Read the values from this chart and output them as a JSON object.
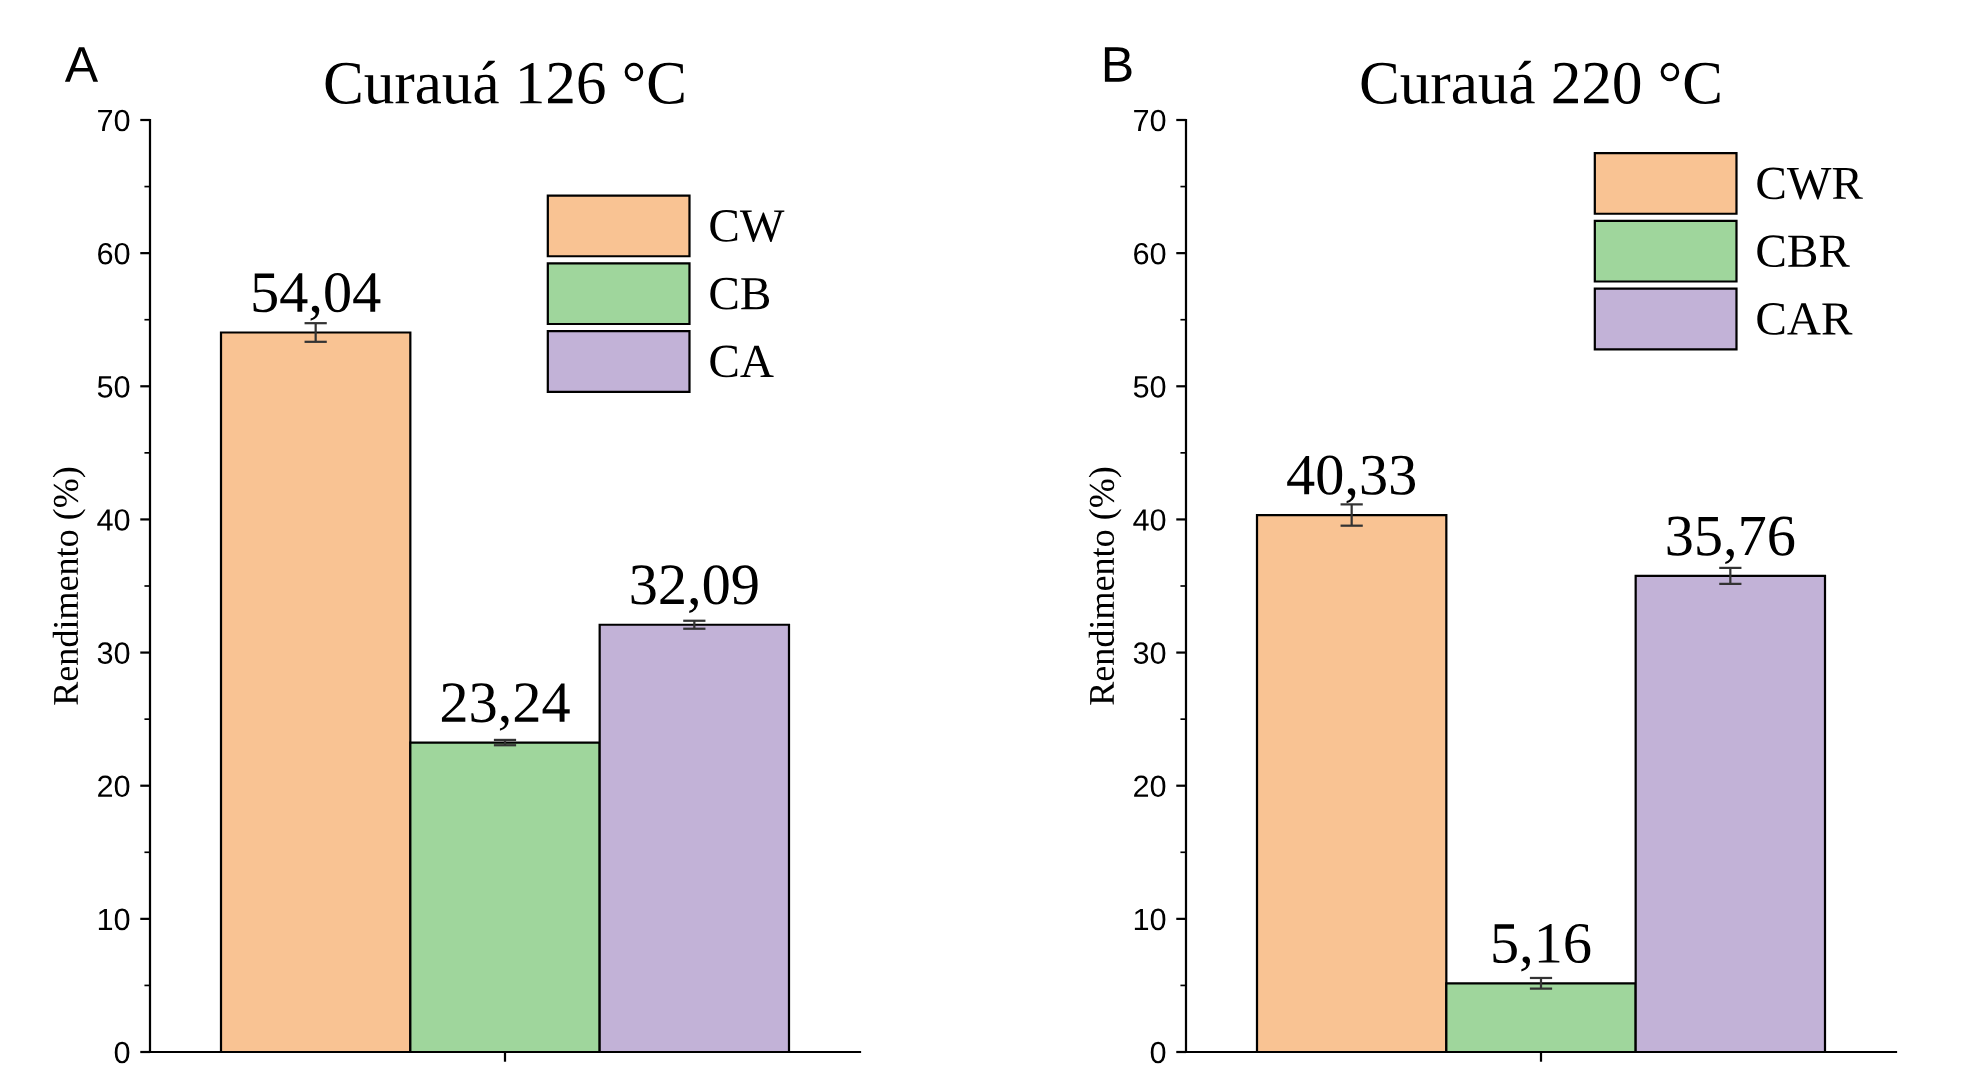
{
  "chart_data": [
    {
      "type": "bar",
      "title": "Curauá 126 °C",
      "ylabel": "Rendimento (%)",
      "annotations": [
        "A"
      ],
      "categories": [
        null
      ],
      "ylim": [
        0,
        70
      ],
      "yticks": [
        0,
        10,
        20,
        30,
        40,
        50,
        60,
        70
      ],
      "legend": "top right",
      "grid": false,
      "series": [
        {
          "name": "CW",
          "color": "#f9c393",
          "values": [
            54.04
          ],
          "errors": [
            0.7
          ],
          "value_labels": [
            "54,04"
          ]
        },
        {
          "name": "CB",
          "color": "#9fd69c",
          "values": [
            23.24
          ],
          "errors": [
            0.2
          ],
          "value_labels": [
            "23,24"
          ]
        },
        {
          "name": "CA",
          "color": "#c2b2d7",
          "values": [
            32.09
          ],
          "errors": [
            0.3
          ],
          "value_labels": [
            "32,09"
          ]
        }
      ]
    },
    {
      "type": "bar",
      "title": "Curauá 220 °C",
      "ylabel": "Rendimento (%)",
      "annotations": [
        "B"
      ],
      "categories": [
        null
      ],
      "ylim": [
        0,
        70
      ],
      "yticks": [
        0,
        10,
        20,
        30,
        40,
        50,
        60,
        70
      ],
      "legend": "top right",
      "grid": false,
      "series": [
        {
          "name": "CWR",
          "color": "#f9c393",
          "values": [
            40.33
          ],
          "errors": [
            0.8
          ],
          "value_labels": [
            "40,33"
          ]
        },
        {
          "name": "CBR",
          "color": "#9fd69c",
          "values": [
            5.16
          ],
          "errors": [
            0.4
          ],
          "value_labels": [
            "5,16"
          ]
        },
        {
          "name": "CAR",
          "color": "#c2b2d7",
          "values": [
            35.76
          ],
          "errors": [
            0.6
          ],
          "value_labels": [
            "35,76"
          ]
        }
      ]
    }
  ]
}
